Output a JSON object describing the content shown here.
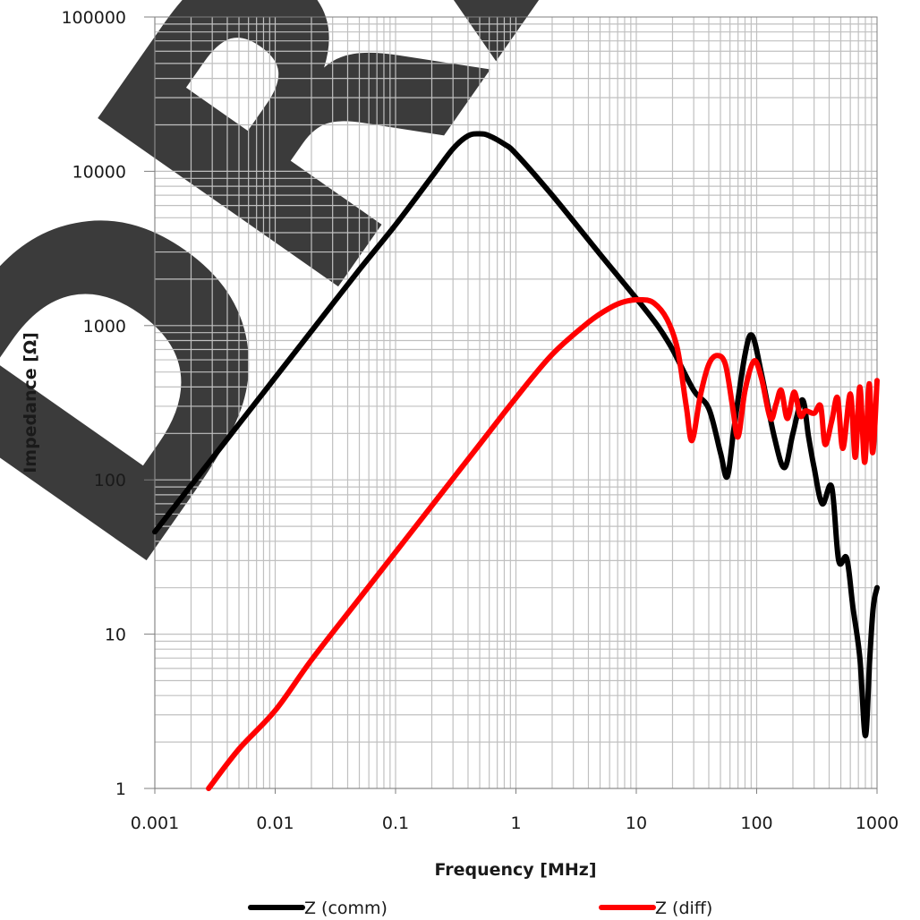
{
  "chart_data": {
    "type": "line",
    "xlabel": "Frequency [MHz]",
    "ylabel": "Impedance [Ω]",
    "x_scale": "log",
    "y_scale": "log",
    "xlim": [
      0.001,
      1000
    ],
    "ylim": [
      1,
      100000
    ],
    "grid": true,
    "legend_position": "bottom",
    "x_ticks": [
      "0.001",
      "0.01",
      "0.1",
      "1",
      "10",
      "100",
      "1000"
    ],
    "y_ticks": [
      "1",
      "10",
      "100",
      "1000",
      "10000",
      "100000"
    ],
    "watermark": "DRAFT",
    "series": [
      {
        "name": "Z (comm)",
        "color": "#000000",
        "points": [
          [
            0.001,
            46
          ],
          [
            0.002,
            92
          ],
          [
            0.005,
            230
          ],
          [
            0.01,
            460
          ],
          [
            0.02,
            920
          ],
          [
            0.05,
            2300
          ],
          [
            0.1,
            4500
          ],
          [
            0.2,
            9200
          ],
          [
            0.3,
            14000
          ],
          [
            0.4,
            17000
          ],
          [
            0.5,
            17500
          ],
          [
            0.6,
            17000
          ],
          [
            0.8,
            15000
          ],
          [
            1,
            13000
          ],
          [
            2,
            7000
          ],
          [
            5,
            2900
          ],
          [
            10,
            1500
          ],
          [
            15,
            1000
          ],
          [
            20,
            700
          ],
          [
            30,
            380
          ],
          [
            40,
            290
          ],
          [
            50,
            150
          ],
          [
            57,
            105
          ],
          [
            65,
            220
          ],
          [
            80,
            650
          ],
          [
            92,
            860
          ],
          [
            110,
            480
          ],
          [
            140,
            190
          ],
          [
            170,
            120
          ],
          [
            200,
            200
          ],
          [
            240,
            330
          ],
          [
            270,
            190
          ],
          [
            300,
            120
          ],
          [
            350,
            70
          ],
          [
            420,
            90
          ],
          [
            480,
            30
          ],
          [
            560,
            31
          ],
          [
            630,
            15
          ],
          [
            720,
            7
          ],
          [
            800,
            2.2
          ],
          [
            870,
            7
          ],
          [
            930,
            15
          ],
          [
            1000,
            20
          ]
        ]
      },
      {
        "name": "Z (diff)",
        "color": "#ff0000",
        "points": [
          [
            0.0028,
            1
          ],
          [
            0.005,
            1.8
          ],
          [
            0.01,
            3.2
          ],
          [
            0.02,
            6.8
          ],
          [
            0.05,
            17
          ],
          [
            0.1,
            34
          ],
          [
            0.2,
            68
          ],
          [
            0.5,
            170
          ],
          [
            1,
            340
          ],
          [
            2,
            650
          ],
          [
            4,
            1050
          ],
          [
            6,
            1300
          ],
          [
            8,
            1430
          ],
          [
            11,
            1470
          ],
          [
            14,
            1400
          ],
          [
            18,
            1100
          ],
          [
            22,
            700
          ],
          [
            26,
            300
          ],
          [
            29,
            180
          ],
          [
            34,
            350
          ],
          [
            40,
            560
          ],
          [
            47,
            640
          ],
          [
            55,
            560
          ],
          [
            63,
            300
          ],
          [
            70,
            190
          ],
          [
            80,
            380
          ],
          [
            95,
            590
          ],
          [
            110,
            450
          ],
          [
            130,
            250
          ],
          [
            145,
            310
          ],
          [
            160,
            380
          ],
          [
            180,
            250
          ],
          [
            205,
            370
          ],
          [
            230,
            260
          ],
          [
            255,
            280
          ],
          [
            300,
            270
          ],
          [
            340,
            300
          ],
          [
            370,
            170
          ],
          [
            420,
            240
          ],
          [
            470,
            340
          ],
          [
            520,
            160
          ],
          [
            600,
            360
          ],
          [
            660,
            140
          ],
          [
            720,
            400
          ],
          [
            790,
            130
          ],
          [
            860,
            420
          ],
          [
            920,
            150
          ],
          [
            1000,
            440
          ]
        ]
      }
    ]
  }
}
